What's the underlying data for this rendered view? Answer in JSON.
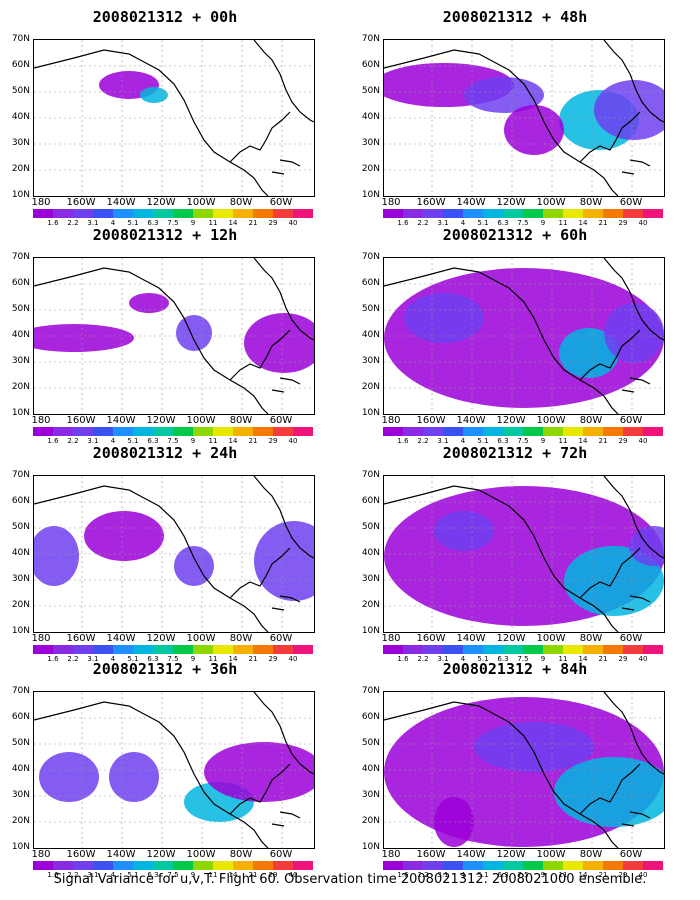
{
  "panels": [
    {
      "title": "2008021312 + 00h"
    },
    {
      "title": "2008021312 + 48h"
    },
    {
      "title": "2008021312 + 12h"
    },
    {
      "title": "2008021312 + 60h"
    },
    {
      "title": "2008021312 + 24h"
    },
    {
      "title": "2008021312 + 72h"
    },
    {
      "title": "2008021312 + 36h"
    },
    {
      "title": "2008021312 + 84h"
    }
  ],
  "lat_labels": [
    "70N",
    "60N",
    "50N",
    "40N",
    "30N",
    "20N",
    "10N"
  ],
  "lon_labels": [
    "180",
    "160W",
    "140W",
    "120W",
    "100W",
    "80W",
    "60W"
  ],
  "colorbar": {
    "labels": [
      "1.6",
      "2.2",
      "3.1",
      "4",
      "5.1",
      "6.3",
      "7.5",
      "9",
      "11",
      "14",
      "21",
      "29",
      "40"
    ],
    "colors": [
      "#9b00d8",
      "#8a2be2",
      "#6f3ff0",
      "#3a52f5",
      "#1e90ff",
      "#00b6e0",
      "#00c8a0",
      "#00c84a",
      "#8ed800",
      "#e8e800",
      "#f5b000",
      "#f57a00",
      "#f53c3c",
      "#f0147a"
    ]
  },
  "footer": "Signal Variance for u,v,T. Flight 60. Observation time 2008021312. 2008021000 ensemble."
}
